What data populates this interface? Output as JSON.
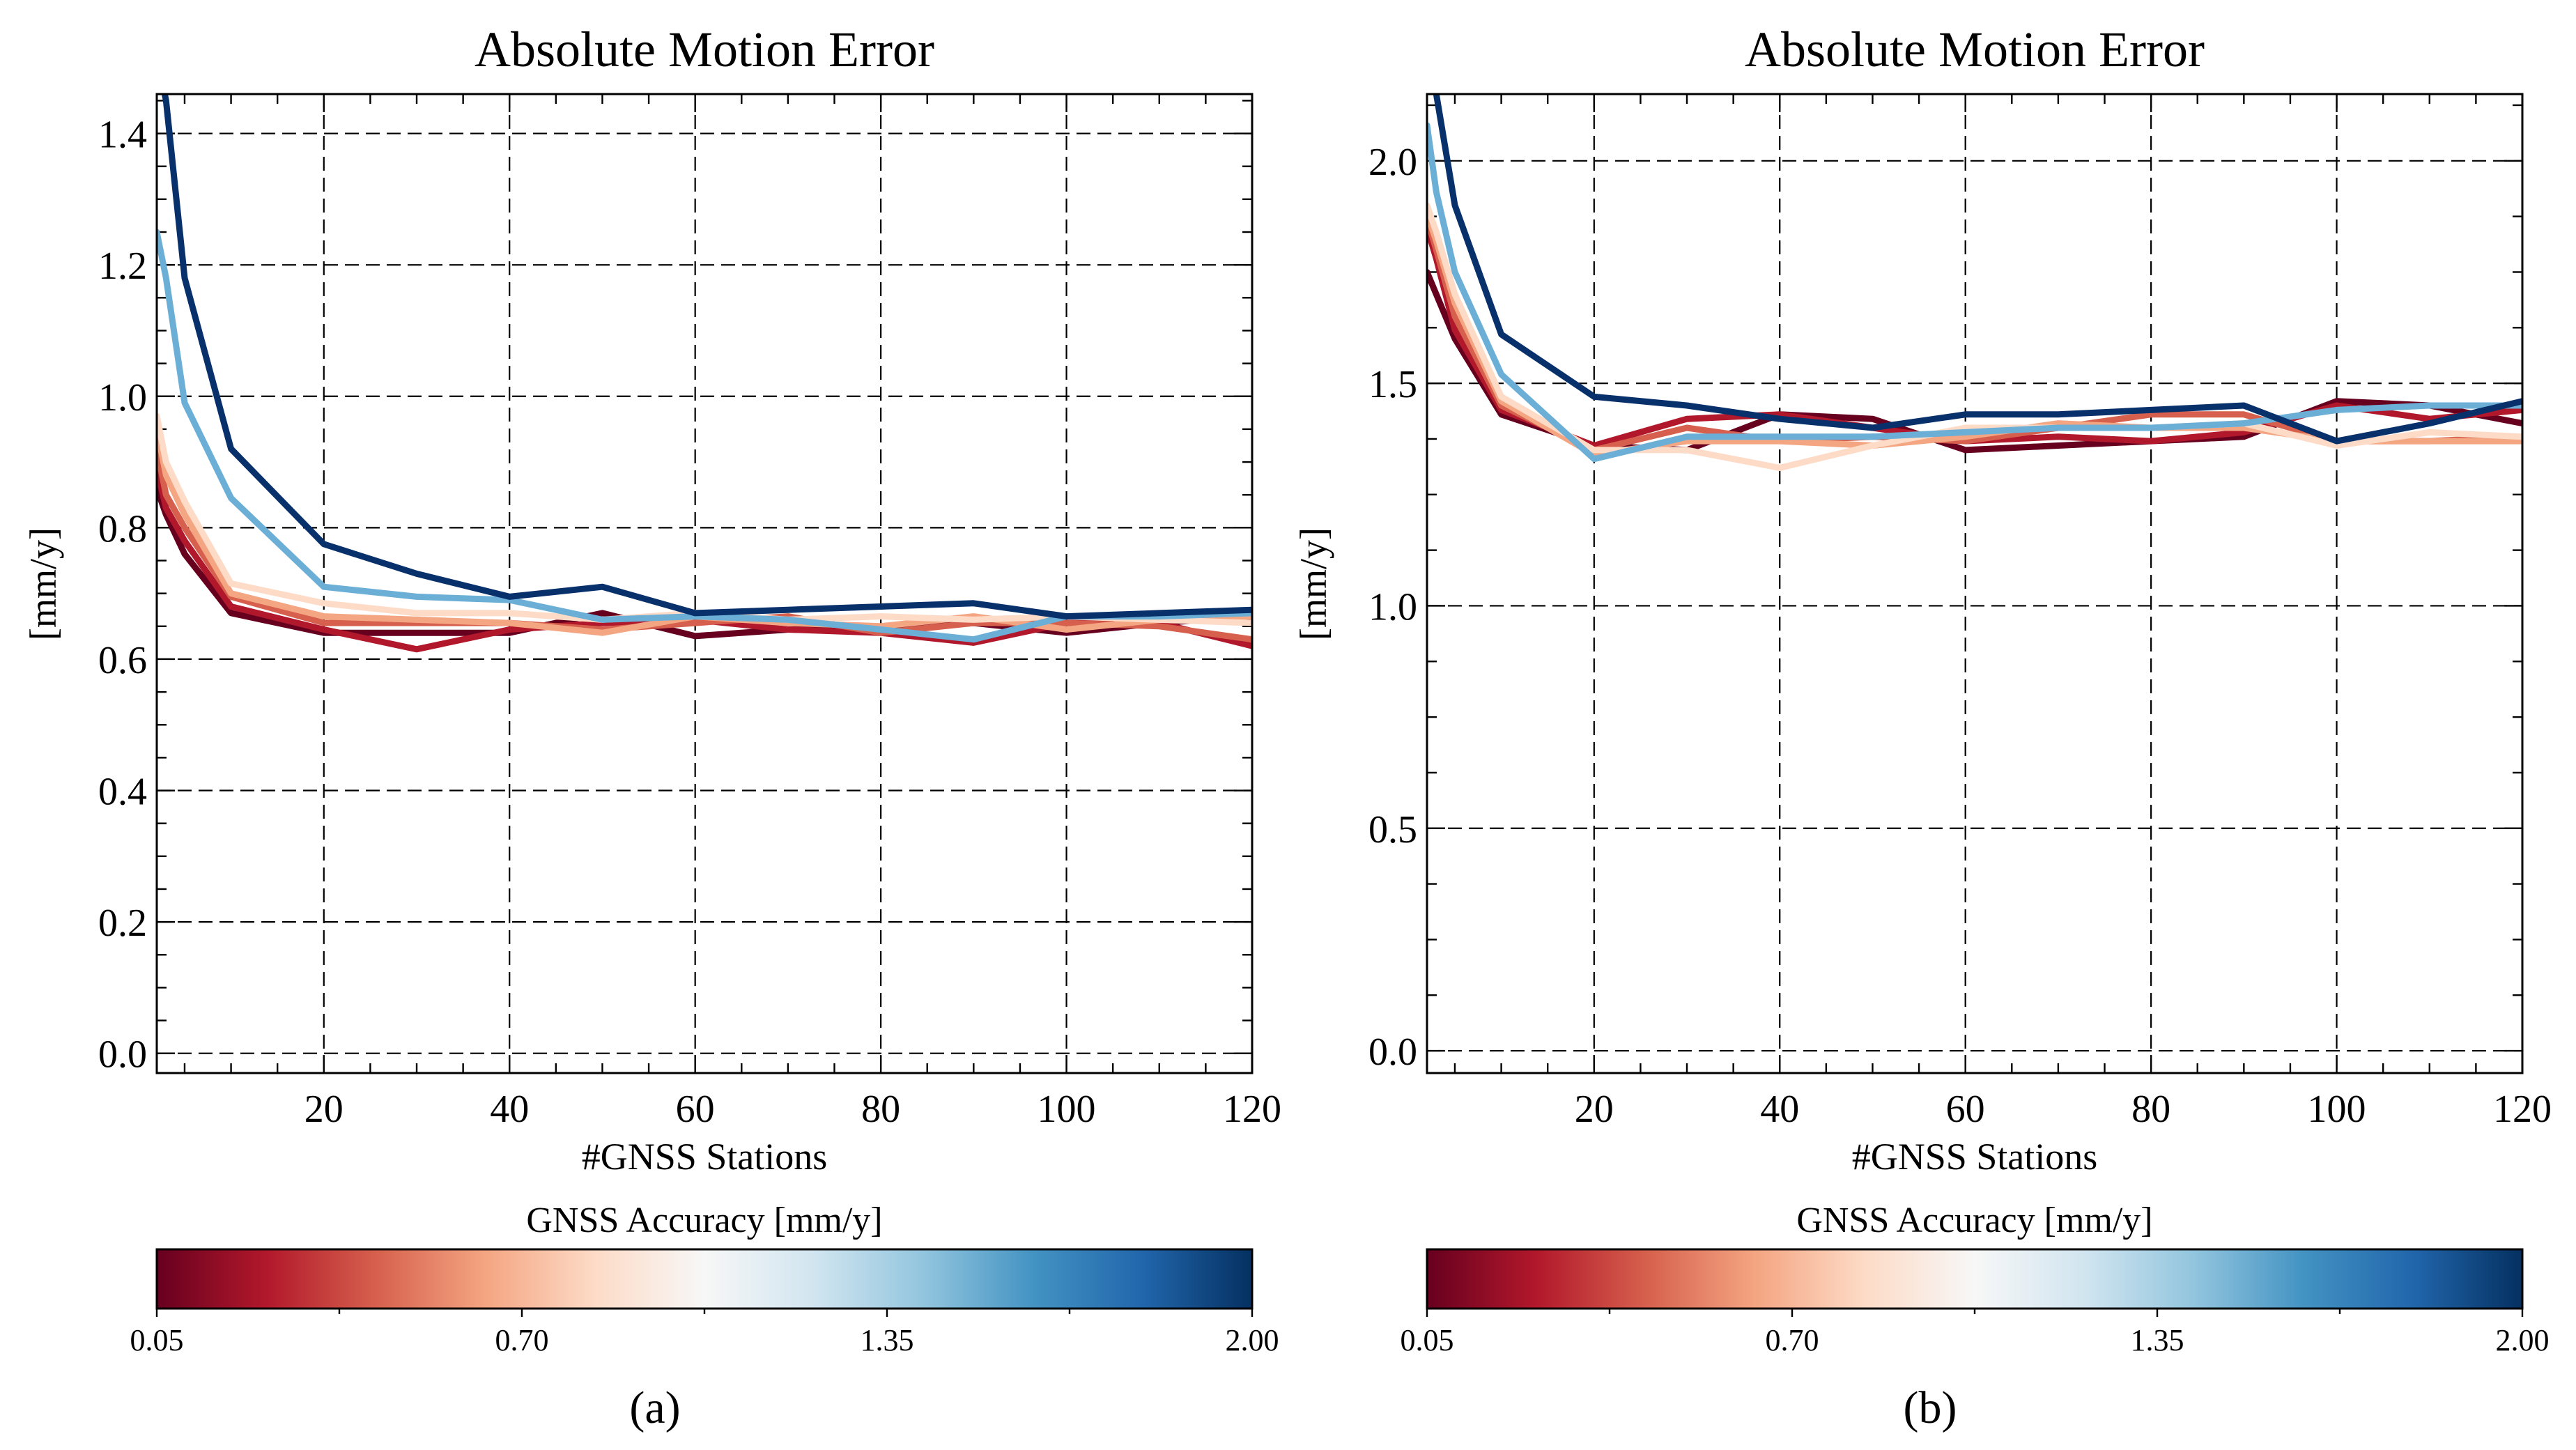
{
  "chart_data": [
    {
      "type": "line",
      "panel_label": "(a)",
      "title": "Absolute Motion Error",
      "xlabel": "#GNSS Stations",
      "ylabel": "[mm/y]",
      "xlim": [
        2,
        120
      ],
      "ylim": [
        -0.03,
        1.46
      ],
      "xticks": [
        20,
        40,
        60,
        80,
        100,
        120
      ],
      "yticks": [
        0.0,
        0.2,
        0.4,
        0.6,
        0.8,
        1.0,
        1.2,
        1.4
      ],
      "ytick_labels": [
        "0.0",
        "0.2",
        "0.4",
        "0.6",
        "0.8",
        "1.0",
        "1.2",
        "1.4"
      ],
      "grid": true,
      "x": [
        2,
        3,
        5,
        10,
        20,
        30,
        40,
        50,
        60,
        70,
        80,
        90,
        100,
        110,
        120
      ],
      "series": [
        {
          "name": "0.05",
          "color": "#67001f",
          "values": [
            0.86,
            0.82,
            0.76,
            0.67,
            0.64,
            0.64,
            0.64,
            0.67,
            0.635,
            0.645,
            0.645,
            0.655,
            0.64,
            0.655,
            0.665
          ]
        },
        {
          "name": "0.20",
          "color": "#b2182b",
          "values": [
            0.89,
            0.83,
            0.78,
            0.68,
            0.645,
            0.615,
            0.645,
            0.655,
            0.66,
            0.645,
            0.64,
            0.625,
            0.655,
            0.655,
            0.62
          ]
        },
        {
          "name": "0.40",
          "color": "#d6604d",
          "values": [
            0.92,
            0.85,
            0.8,
            0.695,
            0.655,
            0.655,
            0.655,
            0.645,
            0.655,
            0.665,
            0.64,
            0.655,
            0.655,
            0.65,
            0.63
          ]
        },
        {
          "name": "0.55",
          "color": "#f4a582",
          "values": [
            0.95,
            0.88,
            0.82,
            0.7,
            0.665,
            0.66,
            0.655,
            0.64,
            0.665,
            0.655,
            0.65,
            0.665,
            0.645,
            0.66,
            0.665
          ]
        },
        {
          "name": "0.70",
          "color": "#fddbc7",
          "values": [
            0.97,
            0.9,
            0.84,
            0.715,
            0.685,
            0.67,
            0.67,
            0.66,
            0.67,
            0.66,
            0.665,
            0.66,
            0.665,
            0.66,
            0.655
          ]
        },
        {
          "name": "1.35",
          "color": "#6baed6",
          "values": [
            1.25,
            1.18,
            0.99,
            0.845,
            0.71,
            0.695,
            0.69,
            0.66,
            0.665,
            0.66,
            0.645,
            0.63,
            0.665,
            0.665,
            0.67
          ]
        },
        {
          "name": "2.00",
          "color": "#08306b",
          "values": [
            1.52,
            1.45,
            1.18,
            0.92,
            0.775,
            0.73,
            0.695,
            0.71,
            0.67,
            0.675,
            0.68,
            0.685,
            0.665,
            0.67,
            0.675
          ]
        }
      ],
      "colorbar": {
        "title": "GNSS Accuracy  [mm/y]",
        "min": 0.05,
        "max": 2.0,
        "ticks": [
          0.05,
          0.7,
          1.35,
          2.0
        ],
        "tick_labels": [
          "0.05",
          "0.70",
          "1.35",
          "2.00"
        ],
        "colors": [
          "#67001f",
          "#b2182b",
          "#d6604d",
          "#f4a582",
          "#fddbc7",
          "#f7f7f7",
          "#d1e5f0",
          "#92c5de",
          "#4393c3",
          "#2166ac",
          "#053061"
        ]
      }
    },
    {
      "type": "line",
      "panel_label": "(b)",
      "title": "Absolute Motion Error",
      "xlabel": "#GNSS Stations",
      "ylabel": "[mm/y]",
      "xlim": [
        2,
        120
      ],
      "ylim": [
        -0.05,
        2.15
      ],
      "xticks": [
        20,
        40,
        60,
        80,
        100,
        120
      ],
      "yticks": [
        0.0,
        0.5,
        1.0,
        1.5,
        2.0
      ],
      "ytick_labels": [
        "0.0",
        "0.5",
        "1.0",
        "1.5",
        "2.0"
      ],
      "grid": true,
      "x": [
        2,
        3,
        5,
        10,
        20,
        30,
        40,
        50,
        60,
        70,
        80,
        90,
        100,
        110,
        120
      ],
      "series": [
        {
          "name": "0.05",
          "color": "#67001f",
          "values": [
            1.75,
            1.7,
            1.6,
            1.43,
            1.36,
            1.35,
            1.43,
            1.42,
            1.35,
            1.36,
            1.37,
            1.38,
            1.46,
            1.45,
            1.41
          ]
        },
        {
          "name": "0.20",
          "color": "#b2182b",
          "values": [
            1.85,
            1.78,
            1.62,
            1.44,
            1.36,
            1.42,
            1.43,
            1.4,
            1.37,
            1.38,
            1.37,
            1.39,
            1.45,
            1.42,
            1.44
          ]
        },
        {
          "name": "0.40",
          "color": "#d6604d",
          "values": [
            1.87,
            1.8,
            1.65,
            1.45,
            1.35,
            1.4,
            1.37,
            1.38,
            1.37,
            1.4,
            1.43,
            1.43,
            1.37,
            1.37,
            1.38
          ]
        },
        {
          "name": "0.55",
          "color": "#f4a582",
          "values": [
            1.88,
            1.82,
            1.68,
            1.46,
            1.34,
            1.37,
            1.37,
            1.36,
            1.38,
            1.41,
            1.4,
            1.4,
            1.37,
            1.37,
            1.37
          ]
        },
        {
          "name": "0.70",
          "color": "#fddbc7",
          "values": [
            1.9,
            1.84,
            1.7,
            1.47,
            1.35,
            1.35,
            1.31,
            1.36,
            1.4,
            1.4,
            1.4,
            1.41,
            1.36,
            1.39,
            1.38
          ]
        },
        {
          "name": "1.35",
          "color": "#6baed6",
          "values": [
            2.08,
            1.93,
            1.75,
            1.52,
            1.33,
            1.38,
            1.38,
            1.38,
            1.39,
            1.4,
            1.4,
            1.41,
            1.44,
            1.45,
            1.45
          ]
        },
        {
          "name": "2.00",
          "color": "#08306b",
          "values": [
            2.4,
            2.15,
            1.9,
            1.61,
            1.47,
            1.45,
            1.42,
            1.4,
            1.43,
            1.43,
            1.44,
            1.45,
            1.37,
            1.41,
            1.46
          ]
        }
      ],
      "colorbar": {
        "title": "GNSS Accuracy  [mm/y]",
        "min": 0.05,
        "max": 2.0,
        "ticks": [
          0.05,
          0.7,
          1.35,
          2.0
        ],
        "tick_labels": [
          "0.05",
          "0.70",
          "1.35",
          "2.00"
        ],
        "colors": [
          "#67001f",
          "#b2182b",
          "#d6604d",
          "#f4a582",
          "#fddbc7",
          "#f7f7f7",
          "#d1e5f0",
          "#92c5de",
          "#4393c3",
          "#2166ac",
          "#053061"
        ]
      }
    }
  ]
}
